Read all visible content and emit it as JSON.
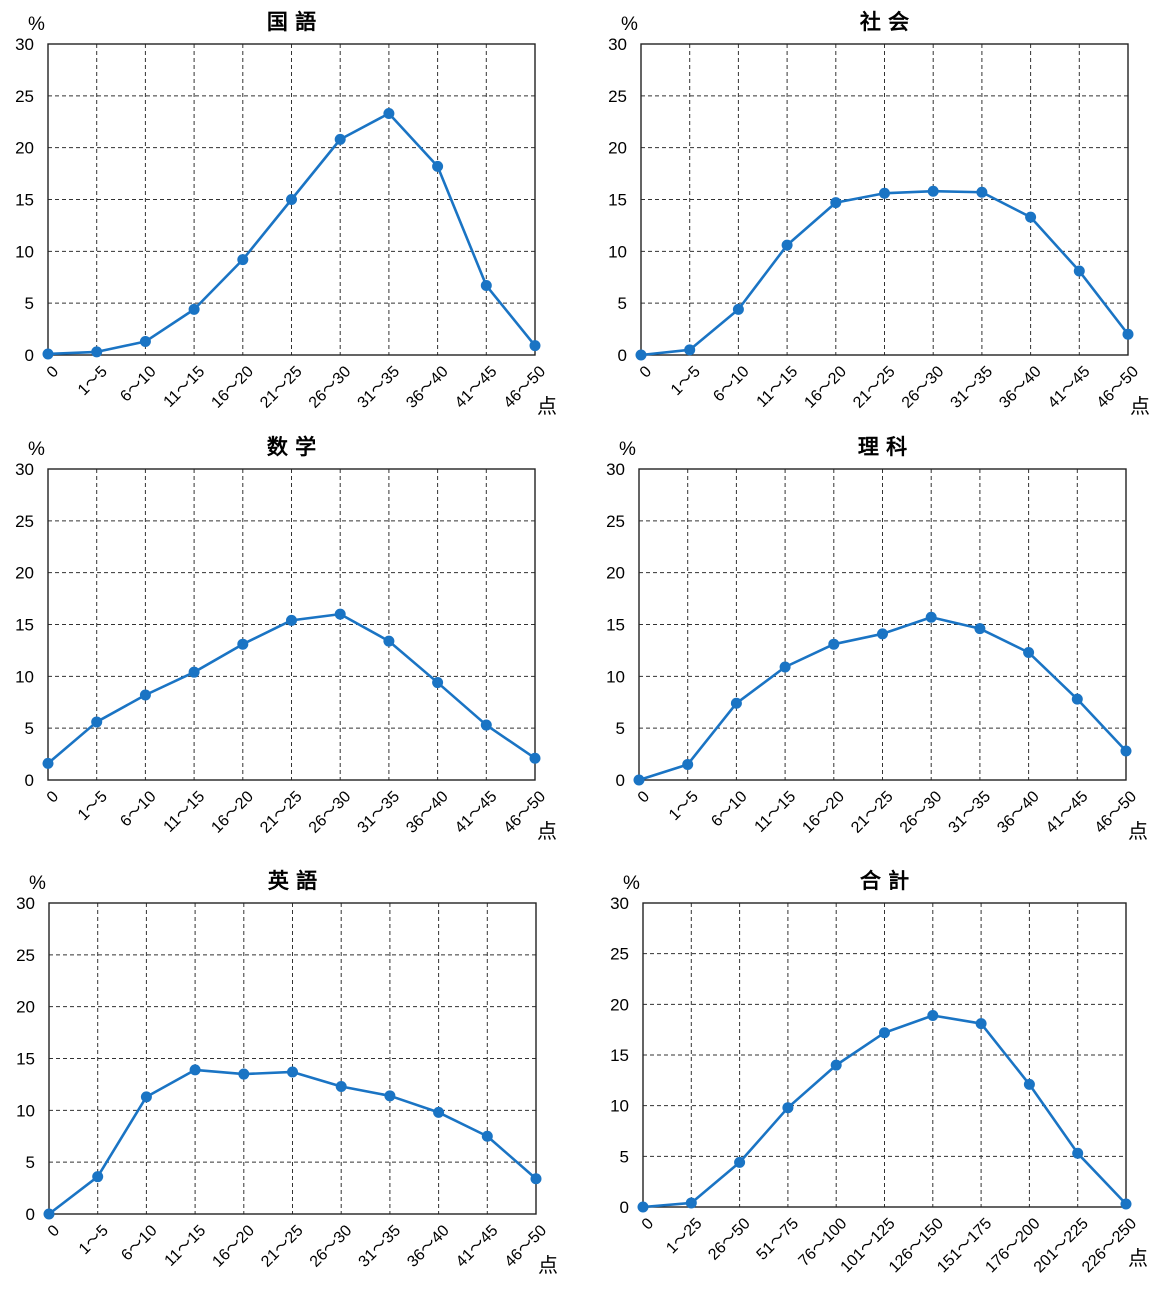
{
  "chart_data": [
    {
      "type": "line",
      "title": "国 語",
      "ylabel": "%",
      "xunit": "点",
      "ylim": [
        0,
        30
      ],
      "yticks": [
        0,
        5,
        10,
        15,
        20,
        25,
        30
      ],
      "grid": true,
      "color": "#1a74c4",
      "categories": [
        "0",
        "1～5",
        "6～10",
        "11～15",
        "16～20",
        "21～25",
        "26～30",
        "31～35",
        "36～40",
        "41～45",
        "46～50"
      ],
      "values": [
        0.1,
        0.3,
        1.3,
        4.4,
        9.2,
        15.0,
        20.8,
        23.3,
        18.2,
        6.7,
        0.9
      ]
    },
    {
      "type": "line",
      "title": "社 会",
      "ylabel": "%",
      "xunit": "点",
      "ylim": [
        0,
        30
      ],
      "yticks": [
        0,
        5,
        10,
        15,
        20,
        25,
        30
      ],
      "grid": true,
      "color": "#1a74c4",
      "categories": [
        "0",
        "1～5",
        "6～10",
        "11～15",
        "16～20",
        "21～25",
        "26～30",
        "31～35",
        "36～40",
        "41～45",
        "46～50"
      ],
      "values": [
        0.0,
        0.5,
        4.4,
        10.6,
        14.7,
        15.6,
        15.8,
        15.7,
        13.3,
        8.1,
        2.0
      ]
    },
    {
      "type": "line",
      "title": "数 学",
      "ylabel": "%",
      "xunit": "点",
      "ylim": [
        0,
        30
      ],
      "yticks": [
        0,
        5,
        10,
        15,
        20,
        25,
        30
      ],
      "grid": true,
      "color": "#1a74c4",
      "categories": [
        "0",
        "1～5",
        "6～10",
        "11～15",
        "16～20",
        "21～25",
        "26～30",
        "31～35",
        "36～40",
        "41～45",
        "46～50"
      ],
      "values": [
        1.6,
        5.6,
        8.2,
        10.4,
        13.1,
        15.4,
        16.0,
        13.4,
        9.4,
        5.3,
        2.1
      ]
    },
    {
      "type": "line",
      "title": "理 科",
      "ylabel": "%",
      "xunit": "点",
      "ylim": [
        0,
        30
      ],
      "yticks": [
        0,
        5,
        10,
        15,
        20,
        25,
        30
      ],
      "grid": true,
      "color": "#1a74c4",
      "categories": [
        "0",
        "1～5",
        "6～10",
        "11～15",
        "16～20",
        "21～25",
        "26～30",
        "31～35",
        "36～40",
        "41～45",
        "46～50"
      ],
      "values": [
        0.0,
        1.5,
        7.4,
        10.9,
        13.1,
        14.1,
        15.7,
        14.6,
        12.3,
        7.8,
        2.8
      ]
    },
    {
      "type": "line",
      "title": "英 語",
      "ylabel": "%",
      "xunit": "点",
      "ylim": [
        0,
        30
      ],
      "yticks": [
        0,
        5,
        10,
        15,
        20,
        25,
        30
      ],
      "grid": true,
      "color": "#1a74c4",
      "categories": [
        "0",
        "1～5",
        "6～10",
        "11～15",
        "16～20",
        "21～25",
        "26～30",
        "31～35",
        "36～40",
        "41～45",
        "46～50"
      ],
      "values": [
        0.0,
        3.6,
        11.3,
        13.9,
        13.5,
        13.7,
        12.3,
        11.4,
        9.8,
        7.5,
        3.4
      ]
    },
    {
      "type": "line",
      "title": "合 計",
      "ylabel": "%",
      "xunit": "点",
      "ylim": [
        0,
        30
      ],
      "yticks": [
        0,
        5,
        10,
        15,
        20,
        25,
        30
      ],
      "grid": true,
      "color": "#1a74c4",
      "categories": [
        "0",
        "1～25",
        "26～50",
        "51～75",
        "76～100",
        "101～125",
        "126～150",
        "151～175",
        "176～200",
        "201～225",
        "226～250"
      ],
      "values": [
        0.0,
        0.4,
        4.4,
        9.8,
        14.0,
        17.2,
        18.9,
        18.1,
        12.1,
        5.3,
        0.3
      ]
    }
  ]
}
